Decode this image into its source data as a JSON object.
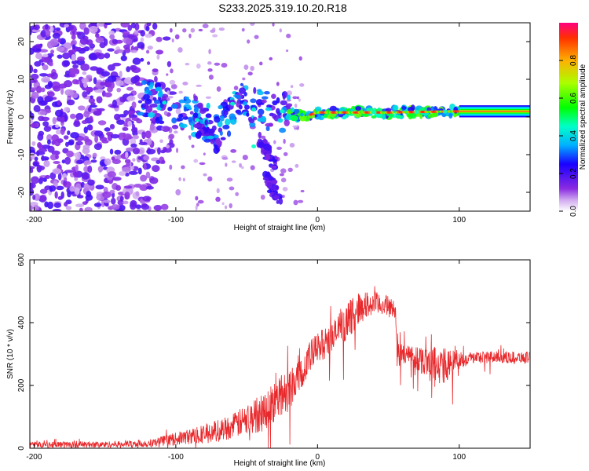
{
  "title": "S233.2025.319.10.20.R18",
  "chart_data": [
    {
      "type": "heatmap",
      "xlabel": "Height of straight line (km)",
      "ylabel": "Frequency (Hz)",
      "xlim": [
        -203,
        150
      ],
      "ylim": [
        -25,
        25
      ],
      "xticks": [
        -200,
        -100,
        0,
        100
      ],
      "yticks": [
        -20,
        -10,
        0,
        10,
        20
      ],
      "colorbar": {
        "label": "Normalized spectral amplitude",
        "range": [
          0,
          1
        ],
        "ticks": [
          "0.0",
          "0.2",
          "0.4",
          "0.6",
          "0.8"
        ],
        "tick_values": [
          0,
          0.2,
          0.4,
          0.6,
          0.8
        ]
      },
      "ridge": [
        {
          "x": -120,
          "f": 4.5
        },
        {
          "x": -100,
          "f": 2
        },
        {
          "x": -85,
          "f": 0
        },
        {
          "x": -70,
          "f": -3
        },
        {
          "x": -55,
          "f": 4
        },
        {
          "x": -40,
          "f": 2
        },
        {
          "x": -20,
          "f": 1
        },
        {
          "x": -10,
          "f": 0
        },
        {
          "x": 0,
          "f": 1.2
        },
        {
          "x": 50,
          "f": 1.2
        },
        {
          "x": 100,
          "f": 1.5
        },
        {
          "x": 150,
          "f": 2
        }
      ],
      "branches": [
        {
          "x0": -85,
          "f0": -1,
          "x1": -70,
          "f1": -8
        },
        {
          "x0": -40,
          "f0": -6,
          "x1": -30,
          "f1": -13
        },
        {
          "x0": -35,
          "f0": -16,
          "x1": -25,
          "f1": -23
        }
      ],
      "band": {
        "x0": 100,
        "x1": 150,
        "f0": 1.1,
        "f1": 1.9
      }
    },
    {
      "type": "line",
      "xlabel": "Height of straight line (km)",
      "ylabel": "SNR (10 * v/v)",
      "xlim": [
        -203,
        150
      ],
      "ylim": [
        0,
        600
      ],
      "xticks": [
        -200,
        -100,
        0,
        100
      ],
      "yticks": [
        0,
        200,
        400,
        600
      ],
      "series_color": "#e8282b",
      "envelope": {
        "x": [
          -203,
          -150,
          -120,
          -100,
          -80,
          -60,
          -40,
          -30,
          -20,
          -10,
          0,
          10,
          20,
          30,
          40,
          50,
          55,
          56,
          70,
          80,
          90,
          100,
          110,
          150
        ],
        "mean": [
          12,
          12,
          15,
          30,
          45,
          70,
          110,
          150,
          190,
          260,
          320,
          350,
          400,
          450,
          460,
          455,
          440,
          300,
          290,
          270,
          260,
          280,
          290,
          290
        ],
        "spread": [
          10,
          10,
          12,
          20,
          30,
          40,
          60,
          70,
          70,
          60,
          50,
          50,
          60,
          50,
          40,
          30,
          30,
          40,
          40,
          60,
          60,
          30,
          20,
          18
        ]
      }
    }
  ]
}
